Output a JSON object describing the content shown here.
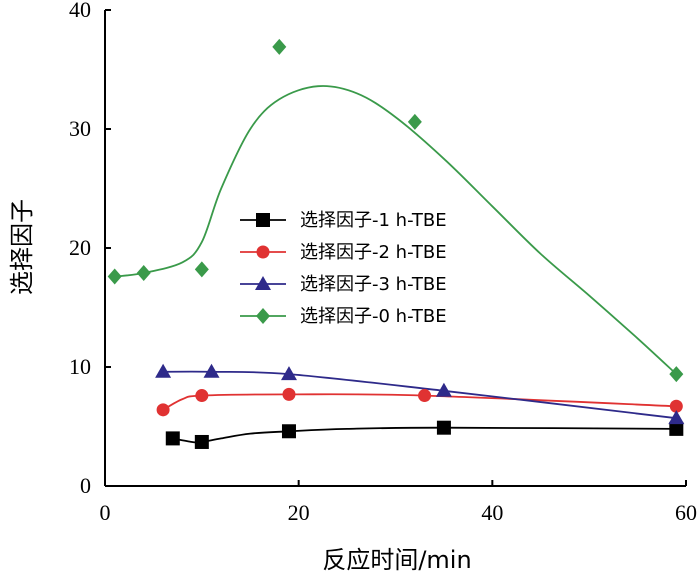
{
  "chart_data": {
    "type": "scatter",
    "title": "",
    "xlabel": "反应时间/min",
    "ylabel": "选择因子",
    "xlim": [
      0,
      60
    ],
    "ylim": [
      0,
      40
    ],
    "xticks": [
      0,
      20,
      40,
      60
    ],
    "yticks": [
      0,
      10,
      20,
      30,
      40
    ],
    "grid": false,
    "legend_position": "center",
    "series": [
      {
        "name": "选择因子-1 h-TBE",
        "marker": "square",
        "color": "#000000",
        "x": [
          7,
          10,
          19,
          35,
          59
        ],
        "y": [
          4.0,
          3.7,
          4.6,
          4.9,
          4.8
        ],
        "smooth": [
          [
            7,
            4.0
          ],
          [
            9,
            3.7
          ],
          [
            10,
            3.7
          ],
          [
            12,
            4.0
          ],
          [
            15,
            4.4
          ],
          [
            19,
            4.6
          ],
          [
            25,
            4.8
          ],
          [
            35,
            4.9
          ],
          [
            59,
            4.8
          ]
        ]
      },
      {
        "name": "选择因子-2 h-TBE",
        "marker": "circle",
        "color": "#e03232",
        "x": [
          6,
          10,
          19,
          33,
          59
        ],
        "y": [
          6.4,
          7.6,
          7.7,
          7.6,
          6.7
        ],
        "smooth": [
          [
            6,
            6.4
          ],
          [
            8,
            7.3
          ],
          [
            10,
            7.6
          ],
          [
            19,
            7.7
          ],
          [
            33,
            7.6
          ],
          [
            59,
            6.7
          ]
        ]
      },
      {
        "name": "选择因子-3 h-TBE",
        "marker": "triangle",
        "color": "#2e2a8a",
        "x": [
          6,
          11,
          19,
          35,
          59
        ],
        "y": [
          9.6,
          9.6,
          9.4,
          8.0,
          5.7
        ],
        "smooth": [
          [
            6,
            9.6
          ],
          [
            11,
            9.6
          ],
          [
            19,
            9.4
          ],
          [
            35,
            8.0
          ],
          [
            59,
            5.7
          ]
        ]
      },
      {
        "name": "选择因子-0 h-TBE",
        "marker": "diamond",
        "color": "#3a9a4a",
        "x": [
          1,
          4,
          10,
          18,
          32,
          59
        ],
        "y": [
          17.6,
          17.9,
          18.2,
          36.9,
          30.6,
          9.4
        ],
        "smooth": [
          [
            1,
            17.6
          ],
          [
            4,
            17.9
          ],
          [
            8,
            18.8
          ],
          [
            10,
            20.5
          ],
          [
            12,
            25
          ],
          [
            15,
            30
          ],
          [
            18,
            32.5
          ],
          [
            22,
            33.6
          ],
          [
            26,
            33
          ],
          [
            30,
            31
          ],
          [
            35,
            27.5
          ],
          [
            40,
            23.5
          ],
          [
            45,
            19.5
          ],
          [
            50,
            16
          ],
          [
            55,
            12.4
          ],
          [
            59,
            9.4
          ]
        ]
      }
    ]
  }
}
